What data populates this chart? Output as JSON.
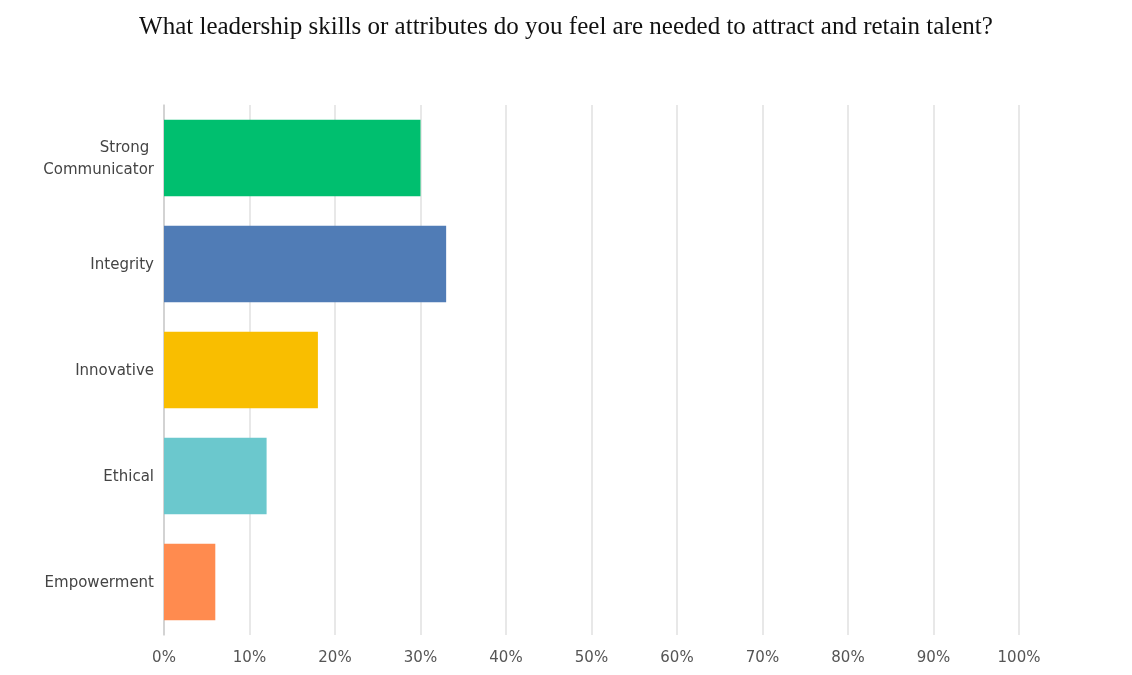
{
  "chart_data": {
    "type": "bar",
    "orientation": "horizontal",
    "title": "What leadership skills or attributes do you feel are needed to attract and retain talent?",
    "categories": [
      "Strong Communicator",
      "Integrity",
      "Innovative",
      "Ethical",
      "Empowerment"
    ],
    "values": [
      30,
      33,
      18,
      12,
      6
    ],
    "colors": [
      "#00bf6f",
      "#507cb6",
      "#f9be00",
      "#6bc8cd",
      "#ff8b4f"
    ],
    "xlim": [
      0,
      100
    ],
    "xticks": [
      {
        "value": 0,
        "label": "0%"
      },
      {
        "value": 10,
        "label": "10%"
      },
      {
        "value": 20,
        "label": "20%"
      },
      {
        "value": 30,
        "label": "30%"
      },
      {
        "value": 40,
        "label": "40%"
      },
      {
        "value": 50,
        "label": "50%"
      },
      {
        "value": 60,
        "label": "60%"
      },
      {
        "value": 70,
        "label": "70%"
      },
      {
        "value": 80,
        "label": "80%"
      },
      {
        "value": 90,
        "label": "90%"
      },
      {
        "value": 100,
        "label": "100%"
      }
    ],
    "grid": "x"
  }
}
